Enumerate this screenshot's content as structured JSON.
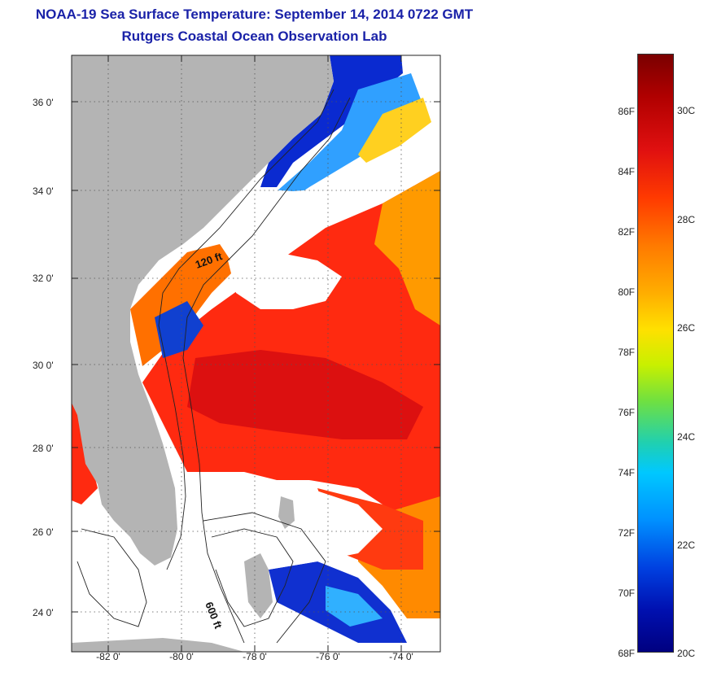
{
  "header": {
    "title_line1": "NOAA-19 Sea Surface Temperature:  September 14, 2014 0722 GMT",
    "title_line2": "Rutgers Coastal Ocean Observation Lab"
  },
  "map": {
    "lat_labels": [
      "36 0'",
      "34 0'",
      "32 0'",
      "30 0'",
      "28 0'",
      "26 0'",
      "24 0'"
    ],
    "lon_labels": [
      "-82 0'",
      "-80 0'",
      "-78 0'",
      "-76 0'",
      "-74 0'"
    ],
    "isobath_labels": [
      "120 ft",
      "600 ft"
    ],
    "colors": {
      "land": "#b4b4b4",
      "cloud": "#ffffff",
      "sst_warm": "#ff2a10",
      "sst_hot": "#e01010",
      "sst_orange": "#ff9a00",
      "sst_cold": "#0018b8"
    }
  },
  "colorbar": {
    "fahrenheit_labels": [
      "86F",
      "84F",
      "82F",
      "80F",
      "78F",
      "76F",
      "74F",
      "72F",
      "70F",
      "68F"
    ],
    "celsius_labels": [
      "30C",
      "28C",
      "26C",
      "24C",
      "22C",
      "20C"
    ]
  }
}
